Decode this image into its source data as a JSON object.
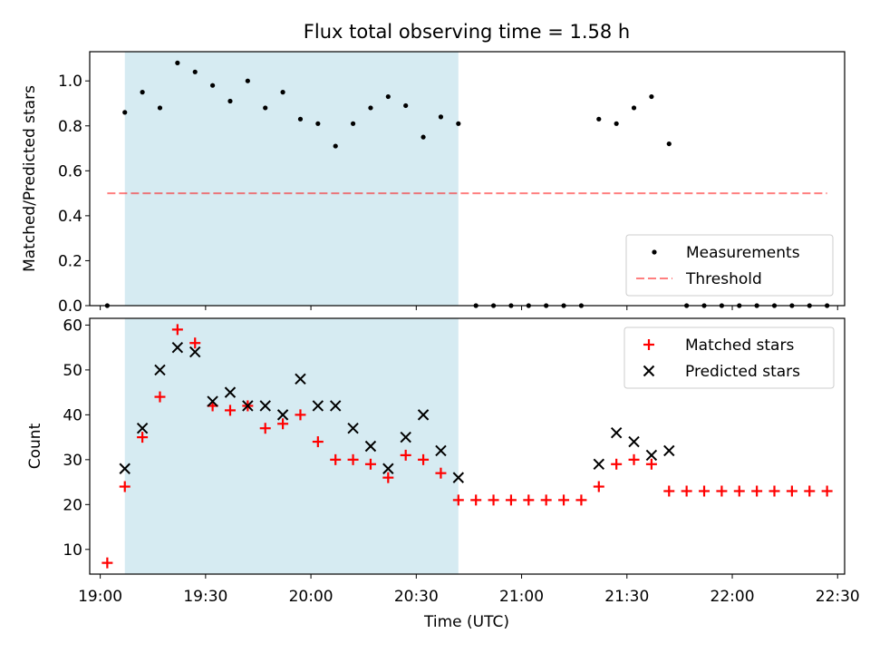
{
  "title": "Flux total observing time = 1.58 h",
  "colors": {
    "shade": "#add8e6",
    "measurement": "#000000",
    "threshold": "#ff0000",
    "matched": "#ff0000",
    "predicted": "#000000"
  },
  "chart_data": [
    {
      "type": "scatter",
      "ylabel": "Matched/Predicted stars",
      "ylim": [
        0,
        1.13
      ],
      "yticks": [
        "0.0",
        "0.2",
        "0.4",
        "0.6",
        "0.8",
        "1.0"
      ],
      "ytick_values": [
        0,
        0.2,
        0.4,
        0.6,
        0.8,
        1.0
      ],
      "shaded_span": [
        "19:07",
        "20:42"
      ],
      "legend": {
        "placement": "lower right",
        "entries": [
          "Measurements",
          "Threshold"
        ]
      },
      "series": [
        {
          "name": "Measurements",
          "marker": "dot",
          "points": [
            [
              "19:02",
              0.0
            ],
            [
              "19:07",
              0.86
            ],
            [
              "19:12",
              0.95
            ],
            [
              "19:17",
              0.88
            ],
            [
              "19:22",
              1.08
            ],
            [
              "19:27",
              1.04
            ],
            [
              "19:32",
              0.98
            ],
            [
              "19:37",
              0.91
            ],
            [
              "19:42",
              1.0
            ],
            [
              "19:47",
              0.88
            ],
            [
              "19:52",
              0.95
            ],
            [
              "19:57",
              0.83
            ],
            [
              "20:02",
              0.81
            ],
            [
              "20:07",
              0.71
            ],
            [
              "20:12",
              0.81
            ],
            [
              "20:17",
              0.88
            ],
            [
              "20:22",
              0.93
            ],
            [
              "20:27",
              0.89
            ],
            [
              "20:32",
              0.75
            ],
            [
              "20:37",
              0.84
            ],
            [
              "20:42",
              0.81
            ],
            [
              "20:47",
              0.0
            ],
            [
              "20:52",
              0.0
            ],
            [
              "20:57",
              0.0
            ],
            [
              "21:02",
              0.0
            ],
            [
              "21:07",
              0.0
            ],
            [
              "21:12",
              0.0
            ],
            [
              "21:17",
              0.0
            ],
            [
              "21:22",
              0.83
            ],
            [
              "21:27",
              0.81
            ],
            [
              "21:32",
              0.88
            ],
            [
              "21:37",
              0.93
            ],
            [
              "21:42",
              0.72
            ],
            [
              "21:47",
              0.0
            ],
            [
              "21:52",
              0.0
            ],
            [
              "21:57",
              0.0
            ],
            [
              "22:02",
              0.0
            ],
            [
              "22:07",
              0.0
            ],
            [
              "22:12",
              0.0
            ],
            [
              "22:17",
              0.0
            ],
            [
              "22:22",
              0.0
            ],
            [
              "22:27",
              0.0
            ]
          ]
        },
        {
          "name": "Threshold",
          "marker": "dashed-line",
          "points": [
            [
              "19:02",
              0.5
            ],
            [
              "22:27",
              0.5
            ]
          ]
        }
      ]
    },
    {
      "type": "scatter",
      "xlabel": "Time (UTC)",
      "ylabel": "Count",
      "ylim": [
        4.5,
        61.5
      ],
      "yticks": [
        "10",
        "20",
        "30",
        "40",
        "50",
        "60"
      ],
      "ytick_values": [
        10,
        20,
        30,
        40,
        50,
        60
      ],
      "xticks": [
        "19:00",
        "19:30",
        "20:00",
        "20:30",
        "21:00",
        "21:30",
        "22:00",
        "22:30"
      ],
      "xlim": [
        "18:57",
        "22:32"
      ],
      "shaded_span": [
        "19:07",
        "20:42"
      ],
      "legend": {
        "placement": "upper right",
        "entries": [
          "Matched stars",
          "Predicted stars"
        ]
      },
      "series": [
        {
          "name": "Matched stars",
          "marker": "plus",
          "points": [
            [
              "19:02",
              7
            ],
            [
              "19:07",
              24
            ],
            [
              "19:12",
              35
            ],
            [
              "19:17",
              44
            ],
            [
              "19:22",
              59
            ],
            [
              "19:27",
              56
            ],
            [
              "19:32",
              42
            ],
            [
              "19:37",
              41
            ],
            [
              "19:42",
              42
            ],
            [
              "19:47",
              37
            ],
            [
              "19:52",
              38
            ],
            [
              "19:57",
              40
            ],
            [
              "20:02",
              34
            ],
            [
              "20:07",
              30
            ],
            [
              "20:12",
              30
            ],
            [
              "20:17",
              29
            ],
            [
              "20:22",
              26
            ],
            [
              "20:27",
              31
            ],
            [
              "20:32",
              30
            ],
            [
              "20:37",
              27
            ],
            [
              "20:42",
              21
            ],
            [
              "20:47",
              21
            ],
            [
              "20:52",
              21
            ],
            [
              "20:57",
              21
            ],
            [
              "21:02",
              21
            ],
            [
              "21:07",
              21
            ],
            [
              "21:12",
              21
            ],
            [
              "21:17",
              21
            ],
            [
              "21:22",
              24
            ],
            [
              "21:27",
              29
            ],
            [
              "21:32",
              30
            ],
            [
              "21:37",
              29
            ],
            [
              "21:42",
              23
            ],
            [
              "21:47",
              23
            ],
            [
              "21:52",
              23
            ],
            [
              "21:57",
              23
            ],
            [
              "22:02",
              23
            ],
            [
              "22:07",
              23
            ],
            [
              "22:12",
              23
            ],
            [
              "22:17",
              23
            ],
            [
              "22:22",
              23
            ],
            [
              "22:27",
              23
            ]
          ]
        },
        {
          "name": "Predicted stars",
          "marker": "x",
          "points": [
            [
              "19:07",
              28
            ],
            [
              "19:12",
              37
            ],
            [
              "19:17",
              50
            ],
            [
              "19:22",
              55
            ],
            [
              "19:27",
              54
            ],
            [
              "19:32",
              43
            ],
            [
              "19:37",
              45
            ],
            [
              "19:42",
              42
            ],
            [
              "19:47",
              42
            ],
            [
              "19:52",
              40
            ],
            [
              "19:57",
              48
            ],
            [
              "20:02",
              42
            ],
            [
              "20:07",
              42
            ],
            [
              "20:12",
              37
            ],
            [
              "20:17",
              33
            ],
            [
              "20:22",
              28
            ],
            [
              "20:27",
              35
            ],
            [
              "20:32",
              40
            ],
            [
              "20:37",
              32
            ],
            [
              "20:42",
              26
            ],
            [
              "21:22",
              29
            ],
            [
              "21:27",
              36
            ],
            [
              "21:32",
              34
            ],
            [
              "21:37",
              31
            ],
            [
              "21:42",
              32
            ]
          ]
        }
      ]
    }
  ]
}
